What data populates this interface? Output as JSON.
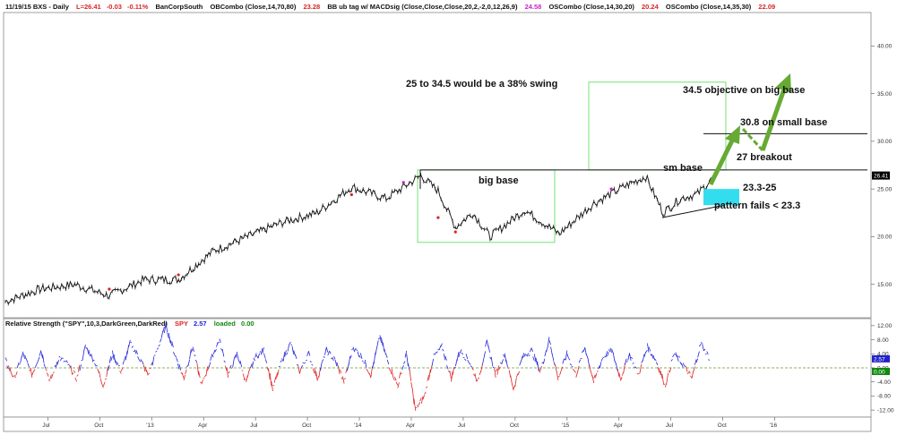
{
  "header": {
    "date_symbol": "11/19/15  BXS - Daily",
    "last_price": "L=26.41",
    "change": "-0.03",
    "change_pct": "-0.11%",
    "company": "BanCorpSouth",
    "ob_label": "OBCombo (Close,14,70,80)",
    "ob_value": "23.28",
    "bb_label": "BB ub tag w/ MACDsig (Close,Close,Close,20,2,-2,0,12,26,9)",
    "bb_value": "24.58",
    "os1_label": "OSCombo (Close,14,30,20)",
    "os1_value": "20.24",
    "os2_label": "OSCombo (Close,14,35,30)",
    "os2_value": "22.09"
  },
  "rs_header": {
    "label": "Relative Strength (\"SPY\",10,3,DarkGreen,DarkRed)",
    "spy_label": "SPY",
    "spy_value": "2.57",
    "loaded_label": "loaded",
    "loaded_value": "0.00"
  },
  "annotations": {
    "swing": "25 to 34.5 would be a  38% swing",
    "big_objective": "34.5 objective on big base",
    "small_objective": "30.8 on small base",
    "big_base": "big base",
    "sm_base": "sm base",
    "breakout": "27 breakout",
    "support_zone": "23.3-25",
    "pattern_fails": "pattern fails < 23.3"
  },
  "colors": {
    "price_bars": "#111111",
    "box": "#66dd66",
    "arrow": "#66aa33",
    "target_box": "#33ddee",
    "rs_up": "#2222dd",
    "rs_down": "#dd2222",
    "zero_line": "#669933",
    "last_price_bg": "#000000",
    "spy_badge_bg": "#2222cc",
    "loaded_badge_bg": "#118811"
  },
  "chart_data": [
    {
      "type": "line",
      "name": "price",
      "x_ticks": [
        "Jul",
        "Oct",
        "'13",
        "Apr",
        "Jul",
        "Oct",
        "'14",
        "Apr",
        "Jul",
        "Oct",
        "'15",
        "Apr",
        "Jul",
        "Oct",
        "'16"
      ],
      "y_ticks": [
        15.0,
        20.0,
        25.0,
        30.0,
        35.0,
        40.0
      ],
      "y_tick_labels": [
        "15.00",
        "20.00",
        "25.00",
        "30.00",
        "35.00",
        "40.00"
      ],
      "ylim": [
        11.5,
        43.5
      ],
      "last_value_label": "26.41",
      "x": [
        "2012-06",
        "2012-08",
        "2012-10",
        "2012-12",
        "2013-02",
        "2013-04",
        "2013-06",
        "2013-08",
        "2013-10",
        "2013-12",
        "2014-02",
        "2014-04",
        "2014-06",
        "2014-07",
        "2014-08",
        "2014-09",
        "2014-10",
        "2014-12",
        "2015-02",
        "2015-04",
        "2015-06",
        "2015-07",
        "2015-08",
        "2015-09",
        "2015-10",
        "2015-11"
      ],
      "y": [
        13.2,
        14.5,
        15.0,
        13.8,
        15.5,
        15.5,
        18.5,
        20.0,
        21.5,
        22.5,
        25.2,
        24.0,
        26.4,
        24.8,
        21.0,
        22.5,
        20.0,
        22.8,
        20.3,
        23.5,
        25.5,
        26.3,
        22.5,
        24.0,
        24.5,
        26.4
      ],
      "levels": [
        {
          "value": 27.0,
          "label": "27 breakout"
        },
        {
          "value": 30.8,
          "label": "30.8 on small base"
        },
        {
          "value": 34.5,
          "label": "34.5 objective on big base"
        },
        {
          "value": 23.3,
          "label": "pattern fails < 23.3"
        }
      ],
      "big_base_range": [
        19.4,
        27.0
      ],
      "swing_box_range": [
        27.0,
        36.2
      ],
      "target_zone": [
        23.3,
        25.0
      ]
    },
    {
      "type": "line",
      "name": "relative strength",
      "series_label": "SPY",
      "y_ticks": [
        -12.0,
        -8.0,
        -4.0,
        0.0,
        4.0,
        8.0,
        12.0
      ],
      "y_tick_labels": [
        "-12.00",
        "-8.00",
        "-4.00",
        "0.00",
        "4.00",
        "8.00",
        "12.00"
      ],
      "ylim": [
        -14.0,
        14.0
      ],
      "last_value_label": "2.57",
      "zero_value_label": "0.00",
      "values": [
        2,
        -3,
        4,
        -2,
        5,
        -4,
        3,
        1,
        -3,
        6,
        2,
        -5,
        4,
        -1,
        7,
        3,
        -2,
        5,
        12,
        4,
        -3,
        6,
        -5,
        2,
        8,
        -2,
        4,
        -4,
        3,
        5,
        -6,
        2,
        7,
        -1,
        4,
        -3,
        5,
        2,
        -4,
        6,
        3,
        -2,
        9,
        1,
        -5,
        4,
        -12,
        -8,
        3,
        6,
        -3,
        5,
        2,
        -4,
        7,
        -2,
        4,
        -6,
        3,
        5,
        -1,
        8,
        -3,
        4,
        -2,
        6,
        -4,
        3,
        5,
        -3,
        4,
        -2,
        6,
        2,
        -5,
        4,
        1,
        -3,
        7,
        2.57
      ]
    }
  ]
}
